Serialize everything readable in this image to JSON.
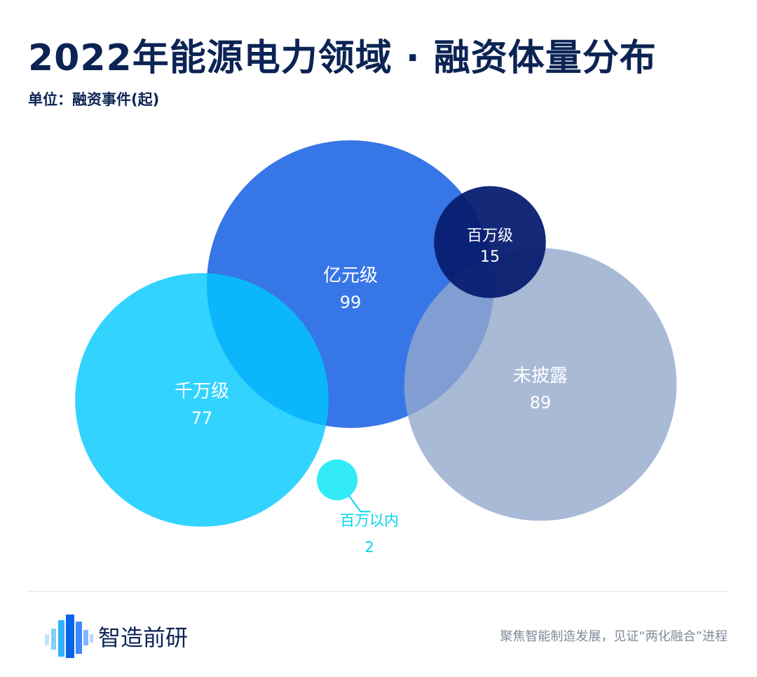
{
  "header": {
    "title": "2022年能源电力领域 · 融资体量分布",
    "unit": "单位：融资事件(起)"
  },
  "chart_data": {
    "type": "bubble",
    "title": "2022年能源电力领域 · 融资体量分布",
    "unit": "单位：融资事件(起)",
    "series": [
      {
        "name": "亿元级",
        "value": 99,
        "color": "#0554e0"
      },
      {
        "name": "千万级",
        "value": 77,
        "color": "#00c8ff"
      },
      {
        "name": "未披露",
        "value": 89,
        "color": "#94a9cd"
      },
      {
        "name": "百万级",
        "value": 15,
        "color": "#071e70"
      },
      {
        "name": "百万以内",
        "value": 2,
        "color": "#00e5f5"
      }
    ]
  },
  "footer": {
    "brand": "智造前研",
    "slogan": "聚焦智能制造发展，见证“两化融合”进程"
  }
}
